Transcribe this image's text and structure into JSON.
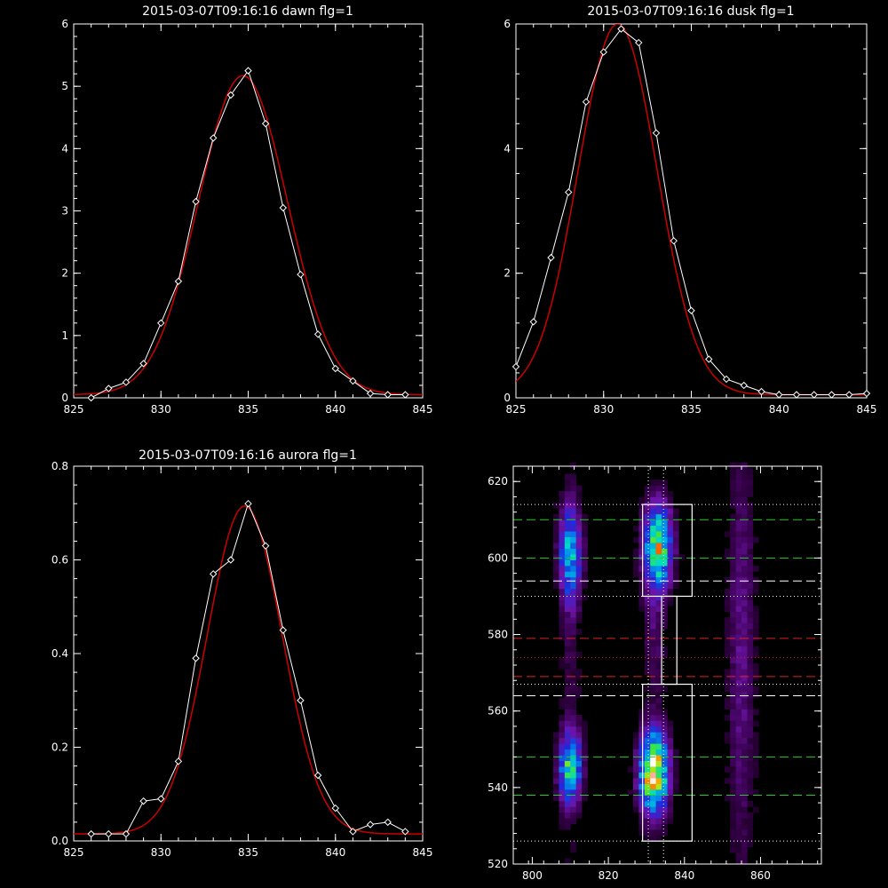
{
  "colors": {
    "background": "#000000",
    "axis": "#ffffff",
    "observed": "#ffffff",
    "fit": "#cc0000",
    "green_guide": "#22cc22",
    "red_guide": "#dd2222",
    "white_guide": "#ffffff"
  },
  "chart_data": [
    {
      "id": "dawn",
      "type": "line",
      "title": "2015-03-07T09:16:16 dawn flg=1",
      "xlim": [
        825,
        845
      ],
      "ylim": [
        0,
        6
      ],
      "xticks": [
        825,
        830,
        835,
        840,
        845
      ],
      "yticks": [
        0,
        1,
        2,
        3,
        4,
        5,
        6
      ],
      "series": [
        {
          "role": "observed",
          "marker": "diamond",
          "x": [
            826,
            827,
            828,
            829,
            830,
            831,
            832,
            833,
            834,
            835,
            836,
            837,
            838,
            839,
            840,
            841,
            842,
            843,
            844
          ],
          "y": [
            0.0,
            0.15,
            0.25,
            0.55,
            1.2,
            1.87,
            3.15,
            4.17,
            4.86,
            5.25,
            4.4,
            3.05,
            1.98,
            1.02,
            0.47,
            0.27,
            0.07,
            0.05,
            0.05
          ]
        },
        {
          "role": "fit",
          "model": "gaussian",
          "amplitude": 5.12,
          "center": 834.7,
          "sigma": 2.55,
          "offset": 0.05
        }
      ]
    },
    {
      "id": "dusk",
      "type": "line",
      "title": "2015-03-07T09:16:16 dusk flg=1",
      "xlim": [
        825,
        845
      ],
      "ylim": [
        0,
        6
      ],
      "xticks": [
        825,
        830,
        835,
        840,
        845
      ],
      "yticks": [
        0,
        2,
        4,
        6
      ],
      "series": [
        {
          "role": "observed",
          "marker": "diamond",
          "x": [
            825,
            826,
            827,
            828,
            829,
            830,
            831,
            832,
            833,
            834,
            835,
            836,
            837,
            838,
            839,
            840,
            841,
            842,
            843,
            844,
            845
          ],
          "y": [
            0.5,
            1.22,
            2.25,
            3.3,
            4.75,
            5.55,
            5.92,
            5.7,
            4.25,
            2.52,
            1.4,
            0.62,
            0.3,
            0.2,
            0.1,
            0.05,
            0.05,
            0.05,
            0.05,
            0.05,
            0.07
          ]
        },
        {
          "role": "fit",
          "model": "gaussian",
          "amplitude": 5.95,
          "center": 830.8,
          "sigma": 2.25,
          "offset": 0.05
        }
      ]
    },
    {
      "id": "aurora",
      "type": "line",
      "title": "2015-03-07T09:16:16 aurora flg=1",
      "xlim": [
        825,
        845
      ],
      "ylim": [
        0,
        0.8
      ],
      "xticks": [
        825,
        830,
        835,
        840,
        845
      ],
      "yticks": [
        0.0,
        0.2,
        0.4,
        0.6,
        0.8
      ],
      "series": [
        {
          "role": "observed",
          "marker": "diamond",
          "x": [
            826,
            827,
            828,
            829,
            830,
            831,
            832,
            833,
            834,
            835,
            836,
            837,
            838,
            839,
            840,
            841,
            842,
            843,
            844
          ],
          "y": [
            0.015,
            0.015,
            0.015,
            0.085,
            0.09,
            0.17,
            0.39,
            0.57,
            0.6,
            0.72,
            0.63,
            0.45,
            0.3,
            0.14,
            0.07,
            0.02,
            0.035,
            0.04,
            0.02
          ]
        },
        {
          "role": "fit",
          "model": "gaussian",
          "amplitude": 0.7,
          "center": 834.8,
          "sigma": 2.15,
          "offset": 0.015
        }
      ]
    },
    {
      "id": "spectral-image",
      "type": "heatmap",
      "title": "",
      "xlim": [
        795,
        876
      ],
      "ylim": [
        520,
        624
      ],
      "xticks": [
        800,
        820,
        840,
        860
      ],
      "yticks": [
        520,
        540,
        560,
        580,
        600,
        620
      ],
      "blobs": [
        {
          "cx": 810,
          "cy": 601,
          "sx": 2.0,
          "sy": 8.0,
          "amp": 0.5
        },
        {
          "cx": 810,
          "cy": 545,
          "sx": 2.0,
          "sy": 6.0,
          "amp": 0.62
        },
        {
          "cx": 833,
          "cy": 603,
          "sx": 2.5,
          "sy": 7.5,
          "amp": 0.75
        },
        {
          "cx": 832,
          "cy": 544,
          "sx": 2.5,
          "sy": 7.0,
          "amp": 1.0
        },
        {
          "cx": 832,
          "cy": 580,
          "sx": 2.0,
          "sy": 14.0,
          "amp": 0.12
        },
        {
          "cx": 855,
          "cy": 575,
          "sx": 2.5,
          "sy": 40.0,
          "amp": 0.16
        },
        {
          "cx": 810,
          "cy": 575,
          "sx": 2.0,
          "sy": 40.0,
          "amp": 0.08
        }
      ],
      "boxes": [
        {
          "x": [
            829,
            842
          ],
          "y": [
            590,
            614
          ]
        },
        {
          "x": [
            834,
            838
          ],
          "y": [
            567,
            590
          ]
        },
        {
          "x": [
            829,
            842
          ],
          "y": [
            526,
            567
          ]
        }
      ],
      "vertical_dotted": [
        830.5,
        834.5
      ],
      "horizontal_lines": [
        {
          "y": 614,
          "style": "dotted",
          "color": "white"
        },
        {
          "y": 610,
          "style": "dashed",
          "color": "green"
        },
        {
          "y": 600,
          "style": "dashed",
          "color": "green"
        },
        {
          "y": 594,
          "style": "dashed",
          "color": "white"
        },
        {
          "y": 590,
          "style": "dotted",
          "color": "white"
        },
        {
          "y": 579,
          "style": "dashed",
          "color": "red"
        },
        {
          "y": 574,
          "style": "dotted",
          "color": "red"
        },
        {
          "y": 569,
          "style": "dashed",
          "color": "red"
        },
        {
          "y": 567,
          "style": "dotted",
          "color": "white"
        },
        {
          "y": 564,
          "style": "dashed",
          "color": "white"
        },
        {
          "y": 548,
          "style": "dashed",
          "color": "green"
        },
        {
          "y": 538,
          "style": "dashed",
          "color": "green"
        },
        {
          "y": 526,
          "style": "dotted",
          "color": "white"
        }
      ]
    }
  ]
}
